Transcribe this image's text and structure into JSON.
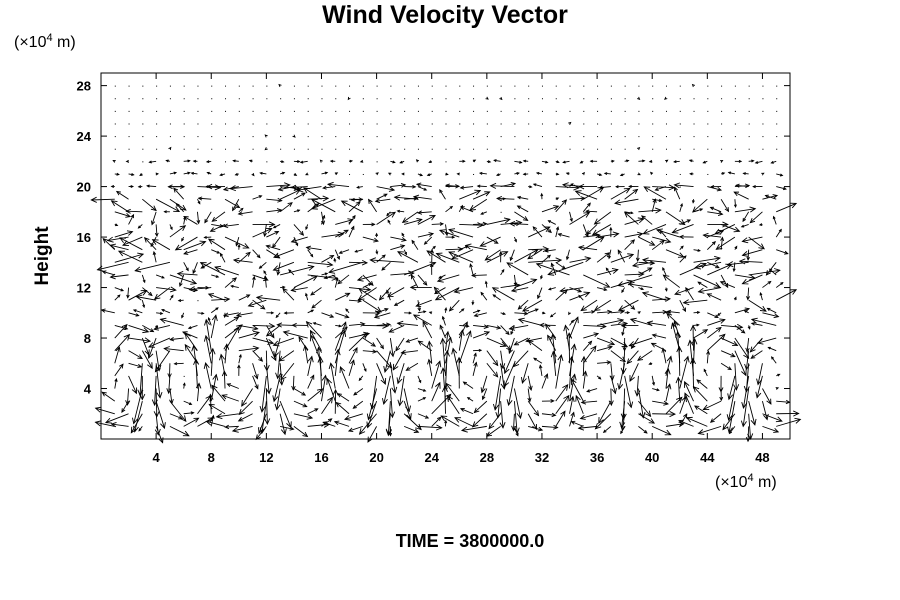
{
  "chart_data": {
    "type": "vector-field",
    "title": "Wind Velocity Vector",
    "ylabel": "Height",
    "x_unit_prefix": "(×10",
    "x_unit_exp": "4",
    "x_unit_suffix": " m)",
    "y_unit_prefix": "(×10",
    "y_unit_exp": "4",
    "y_unit_suffix": " m)",
    "xlim": [
      0,
      50
    ],
    "ylim": [
      0,
      29
    ],
    "x_ticks": [
      "4",
      "8",
      "12",
      "16",
      "20",
      "24",
      "28",
      "32",
      "36",
      "40",
      "44",
      "48"
    ],
    "y_ticks": [
      "4",
      "8",
      "12",
      "16",
      "20",
      "24",
      "28"
    ],
    "grid": false,
    "time_label": "TIME = 3800000.0"
  }
}
